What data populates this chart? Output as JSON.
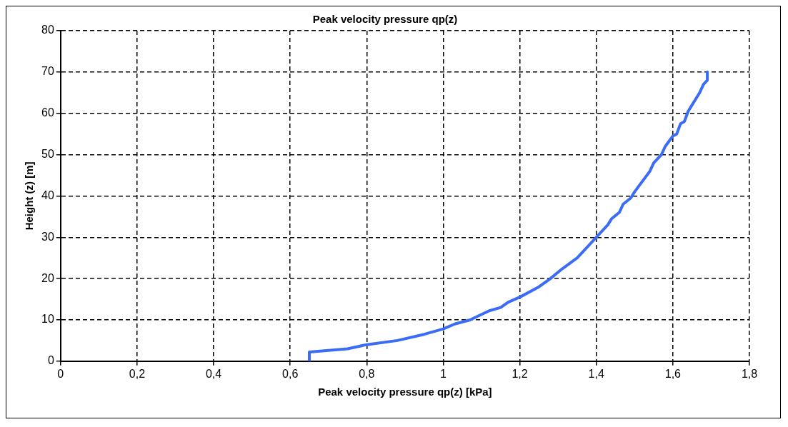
{
  "chart_data": {
    "type": "line",
    "title": "Peak velocity pressure qp(z)",
    "xlabel": "Peak velocity pressure qp(z) [kPa]",
    "ylabel": "Height (z) [m]",
    "series": [
      {
        "color": "#3b6cf5",
        "x": [
          0.65,
          0.65,
          0.75,
          0.8,
          0.88,
          0.95,
          1.0,
          1.03,
          1.07,
          1.12,
          1.15,
          1.17,
          1.2,
          1.25,
          1.28,
          1.31,
          1.35,
          1.37,
          1.4,
          1.43,
          1.44,
          1.46,
          1.47,
          1.49,
          1.5,
          1.52,
          1.54,
          1.55,
          1.57,
          1.58,
          1.6,
          1.61,
          1.62,
          1.63,
          1.64,
          1.65,
          1.67,
          1.68,
          1.69,
          1.69
        ],
        "values": [
          0,
          2.2,
          3,
          4,
          5,
          6.5,
          7.8,
          9,
          10,
          12.2,
          13,
          14.3,
          15.5,
          18,
          20,
          22.3,
          25,
          27,
          30,
          33,
          34.5,
          36,
          38,
          39.5,
          41,
          43.5,
          46,
          48,
          50,
          52,
          54.5,
          55,
          57.5,
          58,
          60.5,
          62,
          65,
          67,
          68,
          70
        ]
      }
    ],
    "xlim": [
      0,
      1.8
    ],
    "xticks": [
      0,
      {
        "value": 0.2,
        "label": "0,2"
      },
      {
        "value": 0.4,
        "label": "0,4"
      },
      {
        "value": 0.6,
        "label": "0,6"
      },
      {
        "value": 0.8,
        "label": "0,8"
      },
      1,
      {
        "value": 1.2,
        "label": "1,2"
      },
      {
        "value": 1.4,
        "label": "1,4"
      },
      {
        "value": 1.6,
        "label": "1,6"
      },
      {
        "value": 1.8,
        "label": "1,8"
      }
    ],
    "ylim": [
      0,
      80
    ],
    "yticks": [
      0,
      10,
      20,
      30,
      40,
      50,
      60,
      70,
      80
    ],
    "grid": true,
    "legend": false,
    "marker": "none",
    "line_style": "solid"
  }
}
